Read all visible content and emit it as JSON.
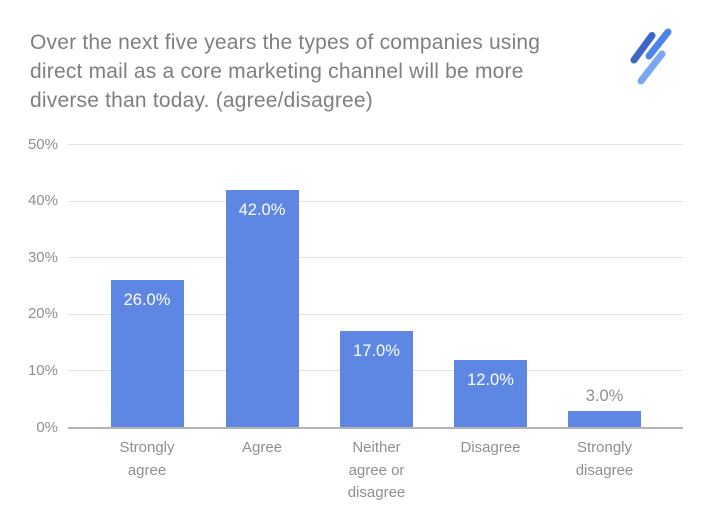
{
  "title": {
    "text": "Over the next five years the types of companies using direct mail as a core marketing channel will be more diverse than today. (agree/disagree)",
    "lines": [
      "Over the next five years the types of companies using",
      "direct mail as a core marketing channel will be more",
      "diverse than today. (agree/disagree)"
    ]
  },
  "logo": {
    "name": "triple-slash-logo",
    "stroke_colors": [
      "#3E66C9",
      "#4C84E8",
      "#7AA6F2"
    ]
  },
  "colors": {
    "bar": "#5E86E3",
    "grid": "#E4E4E4",
    "axis_line": "#B3B3B3",
    "title_text": "#7F7F7F",
    "tick_text": "#8F8F8F",
    "label_inside": "#FFFFFF",
    "label_outside": "#8F8F8F"
  },
  "chart_data": {
    "type": "bar",
    "title": "Over the next five years the types of companies using direct mail as a core marketing channel will be more diverse than today. (agree/disagree)",
    "categories": [
      "Strongly agree",
      "Agree",
      "Neither agree or disagree",
      "Disagree",
      "Strongly disagree"
    ],
    "categories_display": [
      "Strongly\nagree",
      "Agree",
      "Neither\nagree or\ndisagree",
      "Disagree",
      "Strongly\ndisagree"
    ],
    "values": [
      26.0,
      42.0,
      17.0,
      12.0,
      3.0
    ],
    "value_labels": [
      "26.0%",
      "42.0%",
      "17.0%",
      "12.0%",
      "3.0%"
    ],
    "xlabel": "",
    "ylabel": "",
    "ylim": [
      0,
      50
    ],
    "ytick_step": 10,
    "ytick_labels": [
      "0%",
      "10%",
      "20%",
      "30%",
      "40%",
      "50%"
    ],
    "grid": "horizontal",
    "legend": "none",
    "inside_label_min_value": 5
  }
}
